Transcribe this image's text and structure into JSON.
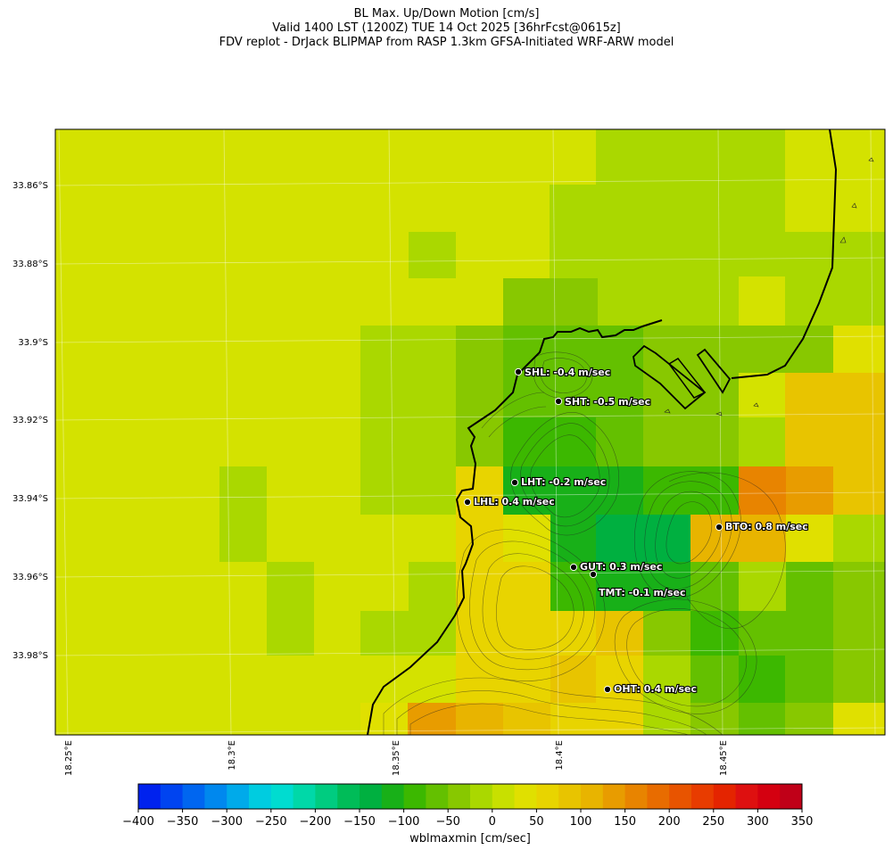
{
  "header": {
    "line1": "BL Max. Up/Down Motion [cm/s]",
    "line2": "Valid 1400 LST (1200Z) TUE 14 Oct 2025 [36hrFcst@0615z]",
    "line3": "FDV replot - DrJack BLIPMAP from RASP 1.3km GFSA-Initiated WRF-ARW model"
  },
  "lat_labels": [
    "33.86°S",
    "33.88°S",
    "33.9°S",
    "33.92°S",
    "33.94°S",
    "33.96°S",
    "33.98°S"
  ],
  "lon_labels": [
    "18.25°E",
    "18.3°E",
    "18.35°E",
    "18.4°E",
    "18.45°E"
  ],
  "stations": [
    {
      "id": "SHL",
      "label": "SHL: -0.4 m/sec"
    },
    {
      "id": "SHT",
      "label": "SHT: -0.5 m/sec"
    },
    {
      "id": "LHT",
      "label": "LHT: -0.2 m/sec"
    },
    {
      "id": "LHL",
      "label": "LHL: 0.4 m/sec"
    },
    {
      "id": "BTO",
      "label": "BTO: 0.8 m/sec"
    },
    {
      "id": "GUT",
      "label": "GUT: 0.3 m/sec"
    },
    {
      "id": "TMT",
      "label": "TMT: -0.1 m/sec"
    },
    {
      "id": "OHT",
      "label": "OHT: 0.4 m/sec"
    }
  ],
  "colorbar": {
    "label": "wblmaxmin [cm/sec]",
    "ticks": [
      "−400",
      "−350",
      "−300",
      "−250",
      "−200",
      "−150",
      "−100",
      "−50",
      "0",
      "50",
      "100",
      "150",
      "200",
      "250",
      "300",
      "350"
    ],
    "colors": [
      "#0022ee",
      "#0044f0",
      "#0066f0",
      "#0088ee",
      "#00aaea",
      "#00cce0",
      "#00dcd0",
      "#00d8a8",
      "#00cc80",
      "#00bc58",
      "#00b040",
      "#18b018",
      "#3cb800",
      "#64c000",
      "#88c800",
      "#aad800",
      "#c8e000",
      "#e0e000",
      "#e8d400",
      "#e8c400",
      "#e8b400",
      "#e89c00",
      "#e88400",
      "#e86c00",
      "#e85400",
      "#e83c00",
      "#e42400",
      "#de1010",
      "#d40010",
      "#c00018"
    ]
  },
  "grid_colors": {
    "base": "#d4e200",
    "light_green": "#aad800",
    "green": "#88c800",
    "mid_green": "#64c000",
    "dark_green": "#3cb800",
    "deep_green": "#18b018",
    "deepest_green": "#00b040",
    "yellow": "#e0e000",
    "gold": "#e8d400",
    "gold2": "#e8c400",
    "amber": "#e8b400",
    "orange": "#e89c00",
    "dark_orange": "#e88400"
  }
}
